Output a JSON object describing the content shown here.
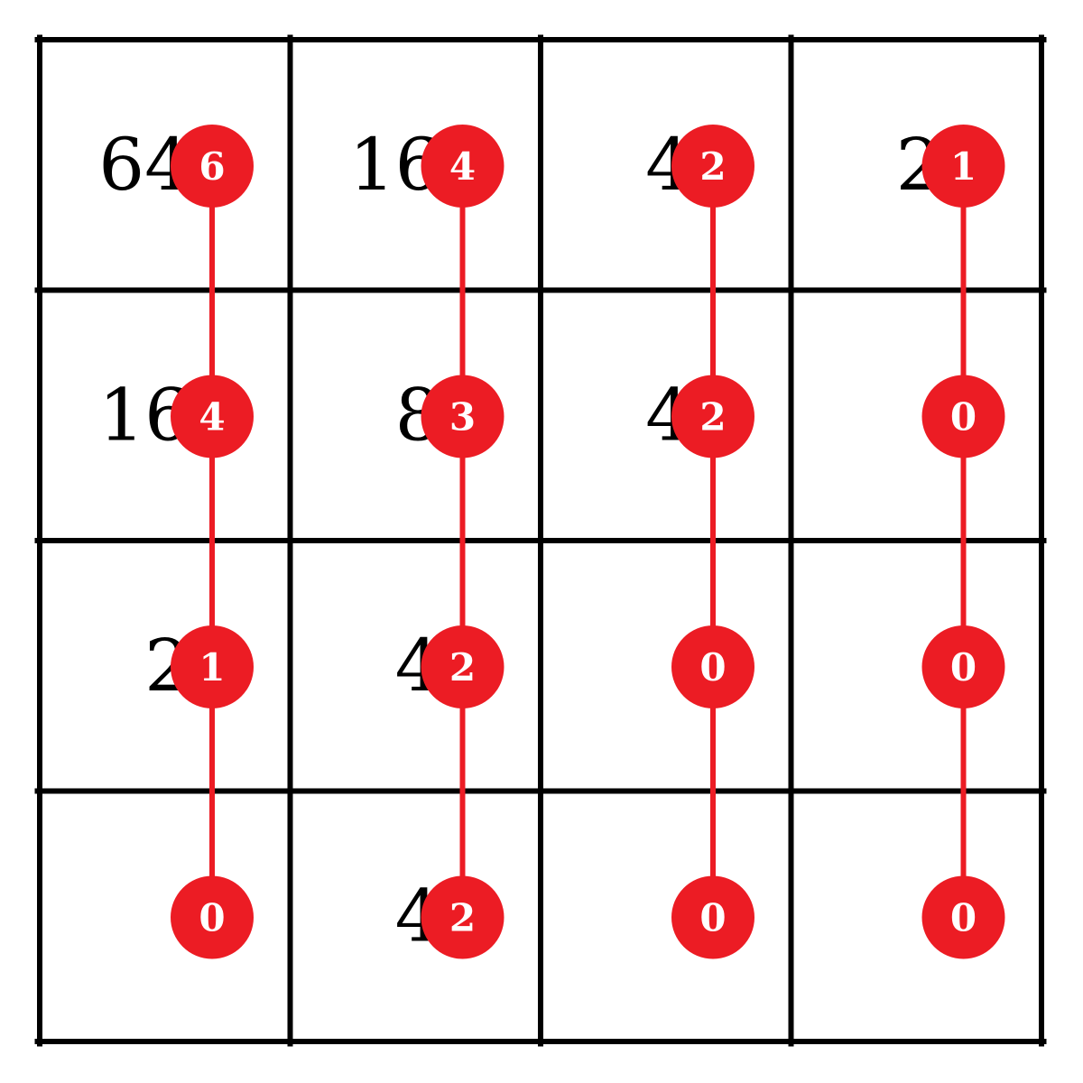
{
  "colors": {
    "grid": "#000000",
    "accent": "#ec1c24",
    "node_text": "#ffffff",
    "background": "#ffffff"
  },
  "board": {
    "rows": 4,
    "cols": 4,
    "tiles": [
      [
        "64",
        "16",
        "4",
        "2"
      ],
      [
        "16",
        "8",
        "4",
        ""
      ],
      [
        "2",
        "4",
        "",
        ""
      ],
      [
        "",
        "4",
        "",
        ""
      ]
    ],
    "exponents": [
      [
        "6",
        "4",
        "2",
        "1"
      ],
      [
        "4",
        "3",
        "2",
        "0"
      ],
      [
        "1",
        "2",
        "0",
        "0"
      ],
      [
        "0",
        "2",
        "0",
        "0"
      ]
    ]
  }
}
